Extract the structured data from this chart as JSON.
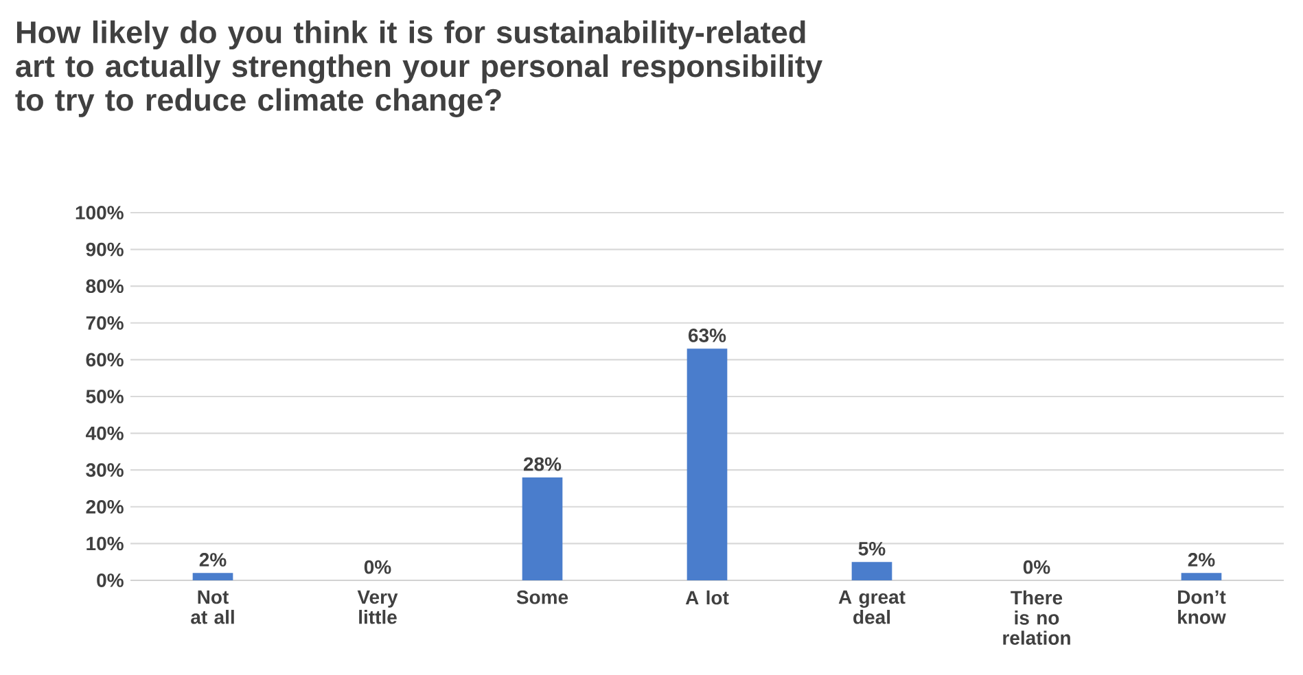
{
  "chart_data": {
    "type": "bar",
    "title": "How likely do you think it is for sustainability-related art to actually strengthen your personal responsibility to try to reduce climate change?",
    "categories": [
      "Not at all",
      "Very little",
      "Some",
      "A lot",
      "A great deal",
      "There is no relation",
      "Don’t know"
    ],
    "values": [
      2,
      0,
      28,
      63,
      5,
      0,
      2
    ],
    "value_labels": [
      "2%",
      "0%",
      "28%",
      "63%",
      "5%",
      "0%",
      "2%"
    ],
    "color": "#4a7dcc",
    "ylim": [
      0,
      100
    ],
    "yticks": [
      {
        "value": 0,
        "label": "0%"
      },
      {
        "value": 10,
        "label": "10%"
      },
      {
        "value": 20,
        "label": "20%"
      },
      {
        "value": 30,
        "label": "30%"
      },
      {
        "value": 40,
        "label": "40%"
      },
      {
        "value": 50,
        "label": "50%"
      },
      {
        "value": 60,
        "label": "60%"
      },
      {
        "value": 70,
        "label": "70%"
      },
      {
        "value": 80,
        "label": "80%"
      },
      {
        "value": 90,
        "label": "90%"
      },
      {
        "value": 100,
        "label": "100%"
      }
    ],
    "grid": "y"
  }
}
